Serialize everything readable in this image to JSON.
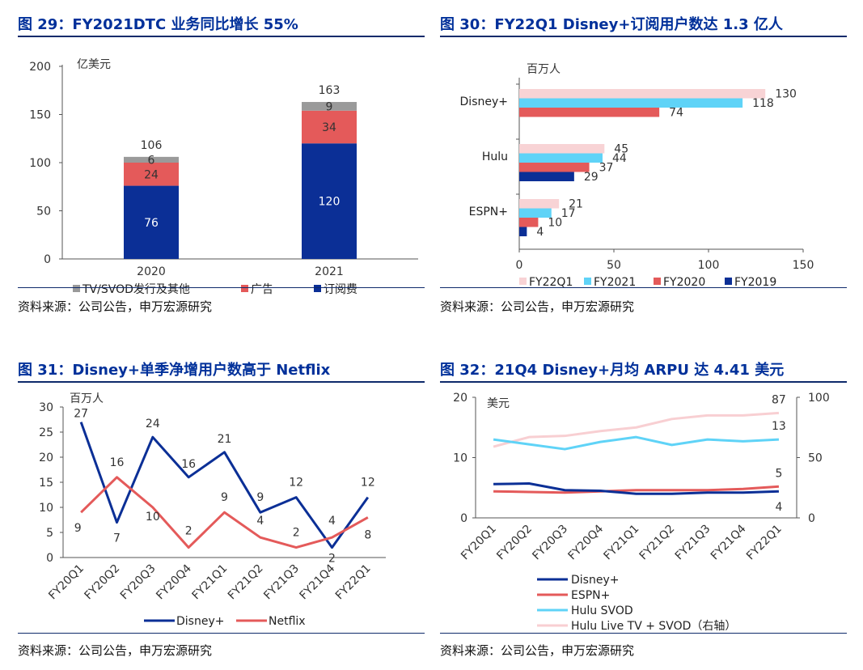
{
  "colors": {
    "navy": "#0b2f96",
    "red": "#e45a5a",
    "gray": "#9a9a9a",
    "cyan": "#5fd3f7",
    "pink": "#f8d3d5",
    "title": "#00309a",
    "axis": "#555555"
  },
  "source_text": "资料来源：公司公告，申万宏源研究",
  "chart_data": [
    {
      "id": "fig29",
      "type": "bar",
      "stacked": true,
      "title": "图 29：FY2021DTC 业务同比增长 55%",
      "unit_label": "亿美元",
      "categories": [
        "2020",
        "2021"
      ],
      "totals": [
        106,
        163
      ],
      "series": [
        {
          "name": "订阅费",
          "color": "#0b2f96",
          "values": [
            76,
            120
          ]
        },
        {
          "name": "广告",
          "color": "#e45a5a",
          "values": [
            24,
            34
          ]
        },
        {
          "name": "TV/SVOD发行及其他",
          "color": "#9a9a9a",
          "values": [
            6,
            9
          ]
        }
      ],
      "legend_order": [
        "TV/SVOD发行及其他",
        "广告",
        "订阅费"
      ],
      "ylim": [
        0,
        200
      ],
      "yticks": [
        0,
        50,
        100,
        150,
        200
      ]
    },
    {
      "id": "fig30",
      "type": "bar",
      "orientation": "horizontal",
      "title": "图 30：FY22Q1 Disney+订阅用户数达 1.3 亿人",
      "unit_label": "百万人",
      "categories": [
        "Disney+",
        "Hulu",
        "ESPN+"
      ],
      "series": [
        {
          "name": "FY22Q1",
          "color": "#f8d3d5",
          "values": [
            130,
            45,
            21
          ]
        },
        {
          "name": "FY2021",
          "color": "#5fd3f7",
          "values": [
            118,
            44,
            17
          ]
        },
        {
          "name": "FY2020",
          "color": "#e45a5a",
          "values": [
            74,
            37,
            10
          ]
        },
        {
          "name": "FY2019",
          "color": "#0b2f96",
          "values": [
            null,
            29,
            4
          ]
        }
      ],
      "xlim": [
        0,
        150
      ],
      "xticks": [
        0,
        50,
        100,
        150
      ]
    },
    {
      "id": "fig31",
      "type": "line",
      "title": "图 31：Disney+单季净增用户数高于 Netflix",
      "unit_label": "百万人",
      "categories": [
        "FY20Q1",
        "FY20Q2",
        "FY20Q3",
        "FY20Q4",
        "FY21Q1",
        "FY21Q2",
        "FY21Q3",
        "FY21Q4",
        "FY22Q1"
      ],
      "series": [
        {
          "name": "Disney+",
          "color": "#0b2f96",
          "values": [
            27,
            7,
            24,
            16,
            21,
            9,
            12,
            2,
            12
          ]
        },
        {
          "name": "Netflix",
          "color": "#e45a5a",
          "values": [
            9,
            16,
            10,
            2,
            9,
            4,
            2,
            4,
            8
          ]
        }
      ],
      "ylim": [
        0,
        30
      ],
      "yticks": [
        0,
        5,
        10,
        15,
        20,
        25,
        30
      ]
    },
    {
      "id": "fig32",
      "type": "line",
      "title": "图 32：21Q4 Disney+月均 ARPU 达 4.41 美元",
      "unit_label": "美元",
      "categories": [
        "FY20Q1",
        "FY20Q2",
        "FY20Q3",
        "FY20Q4",
        "FY21Q1",
        "FY21Q2",
        "FY21Q3",
        "FY21Q4",
        "FY22Q1"
      ],
      "series": [
        {
          "name": "Disney+",
          "color": "#0b2f96",
          "axis": "left",
          "values": [
            5.6,
            5.7,
            4.6,
            4.5,
            4.0,
            4.0,
            4.2,
            4.2,
            4.4
          ],
          "end_label": "4"
        },
        {
          "name": "ESPN+",
          "color": "#e45a5a",
          "axis": "left",
          "values": [
            4.4,
            4.3,
            4.2,
            4.4,
            4.6,
            4.6,
            4.6,
            4.8,
            5.2
          ],
          "end_label": "5"
        },
        {
          "name": "Hulu SVOD",
          "color": "#5fd3f7",
          "axis": "left",
          "values": [
            13.0,
            12.2,
            11.4,
            12.6,
            13.4,
            12.1,
            13.0,
            12.7,
            13.0
          ],
          "end_label": "13"
        },
        {
          "name": "Hulu Live TV + SVOD（右轴）",
          "color": "#f8cfd2",
          "axis": "right",
          "values": [
            59,
            67,
            68,
            72,
            75,
            82,
            85,
            85,
            87
          ],
          "end_label": "87"
        }
      ],
      "ylim_left": [
        0,
        20
      ],
      "yticks_left": [
        0,
        10,
        20
      ],
      "ylim_right": [
        0,
        100
      ],
      "yticks_right": [
        0,
        50,
        100
      ]
    }
  ]
}
